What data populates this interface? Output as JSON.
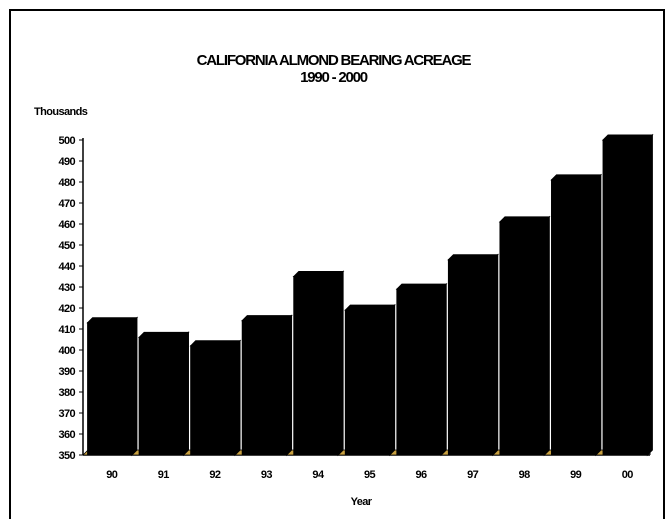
{
  "chart_data": {
    "type": "bar",
    "title": "CALIFORNIA ALMOND BEARING ACREAGE",
    "subtitle": "1990 - 2000",
    "unit_label": "Thousands",
    "xlabel": "Year",
    "ylabel": "",
    "ylim": [
      350,
      500
    ],
    "y_ticks": [
      350,
      360,
      370,
      380,
      390,
      400,
      410,
      420,
      430,
      440,
      450,
      460,
      470,
      480,
      490,
      500
    ],
    "categories": [
      "90",
      "91",
      "92",
      "93",
      "94",
      "95",
      "96",
      "97",
      "98",
      "99",
      "00"
    ],
    "values": [
      413,
      406,
      402,
      414,
      435,
      419,
      429,
      443,
      461,
      481,
      500
    ],
    "grid": false,
    "legend": "none",
    "bar_color": "#000000",
    "floor_color": "#c8a040"
  }
}
